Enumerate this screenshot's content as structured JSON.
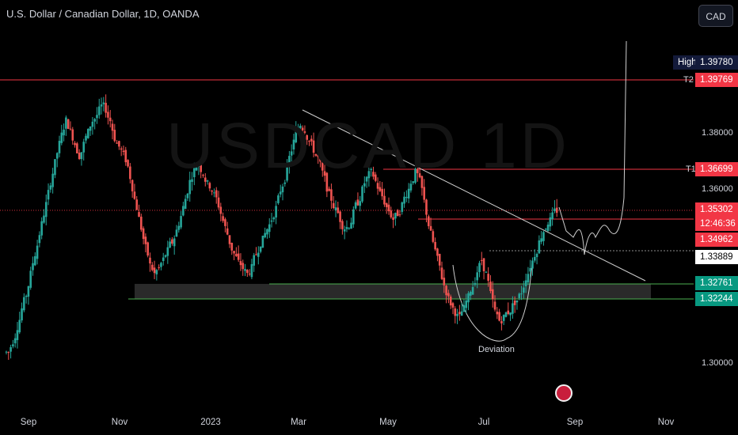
{
  "header": {
    "title": "U.S. Dollar / Canadian Dollar, 1D, OANDA",
    "currency_button": "CAD"
  },
  "watermark": "USDCAD 1D",
  "chart_data": {
    "type": "candlestick",
    "title": "U.S. Dollar / Canadian Dollar, 1D, OANDA",
    "x_ticks": [
      "Sep",
      "Nov",
      "2023",
      "Mar",
      "May",
      "Jul",
      "Sep",
      "Nov"
    ],
    "y_ticks": [
      "1.30000",
      "1.36000",
      "1.38000"
    ],
    "price_tags": [
      {
        "label": "High",
        "value": "1.39780",
        "style": "navy"
      },
      {
        "label": "T2",
        "value": "1.39769",
        "style": "red"
      },
      {
        "label": "T1",
        "value": "1.36699",
        "style": "red"
      },
      {
        "label": "",
        "value": "1.35302",
        "sub": "12:46:36",
        "style": "red"
      },
      {
        "label": "",
        "value": "1.34962",
        "style": "red"
      },
      {
        "label": "",
        "value": "1.33889",
        "style": "white"
      },
      {
        "label": "",
        "value": "1.32761",
        "style": "green"
      },
      {
        "label": "",
        "value": "1.32244",
        "style": "green"
      }
    ],
    "annotations": [
      "Deviation"
    ],
    "price_path": [
      1.304,
      1.308,
      1.313,
      1.319,
      1.324,
      1.331,
      1.338,
      1.345,
      1.352,
      1.359,
      1.366,
      1.373,
      1.379,
      1.384,
      1.38,
      1.376,
      1.372,
      1.376,
      1.38,
      1.384,
      1.386,
      1.389,
      1.388,
      1.384,
      1.378,
      1.375,
      1.372,
      1.368,
      1.361,
      1.354,
      1.347,
      1.34,
      1.334,
      1.331,
      1.333,
      1.336,
      1.339,
      1.342,
      1.346,
      1.351,
      1.357,
      1.363,
      1.367,
      1.369,
      1.366,
      1.362,
      1.36,
      1.357,
      1.352,
      1.347,
      1.342,
      1.338,
      1.335,
      1.333,
      1.331,
      1.333,
      1.338,
      1.342,
      1.345,
      1.348,
      1.352,
      1.357,
      1.362,
      1.367,
      1.374,
      1.38,
      1.383,
      1.381,
      1.377,
      1.374,
      1.371,
      1.366,
      1.361,
      1.357,
      1.353,
      1.35,
      1.347,
      1.348,
      1.352,
      1.356,
      1.36,
      1.364,
      1.366,
      1.363,
      1.359,
      1.356,
      1.353,
      1.35,
      1.352,
      1.355,
      1.359,
      1.363,
      1.366,
      1.363,
      1.356,
      1.348,
      1.342,
      1.336,
      1.33,
      1.325,
      1.321,
      1.318,
      1.316,
      1.319,
      1.323,
      1.327,
      1.332,
      1.336,
      1.331,
      1.324,
      1.318,
      1.315,
      1.316,
      1.318,
      1.32,
      1.322,
      1.325,
      1.33,
      1.334,
      1.338,
      1.342,
      1.346,
      1.349,
      1.351,
      1.353
    ]
  }
}
